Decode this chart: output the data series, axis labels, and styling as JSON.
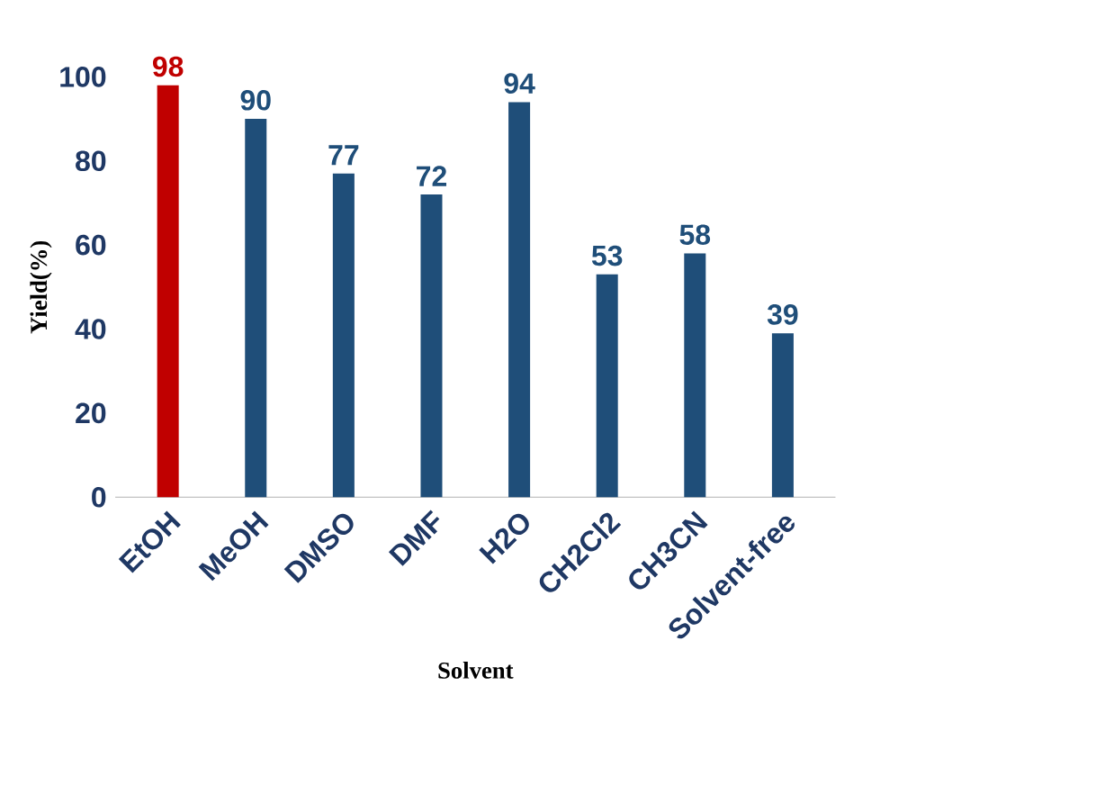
{
  "chart_data": {
    "type": "bar",
    "xlabel": "Solvent",
    "ylabel": "Yield(%)",
    "categories": [
      "EtOH",
      "MeOH",
      "DMSO",
      "DMF",
      "H2O",
      "CH2Cl2",
      "CH3CN",
      "Solvent-free"
    ],
    "values": [
      98,
      90,
      77,
      72,
      94,
      53,
      58,
      39
    ],
    "colors": [
      "#c00000",
      "#1f4e79",
      "#1f4e79",
      "#1f4e79",
      "#1f4e79",
      "#1f4e79",
      "#1f4e79",
      "#1f4e79"
    ],
    "ylim": [
      0,
      100
    ],
    "yticks": [
      0,
      20,
      40,
      60,
      80,
      100
    ],
    "data_labels": true
  }
}
